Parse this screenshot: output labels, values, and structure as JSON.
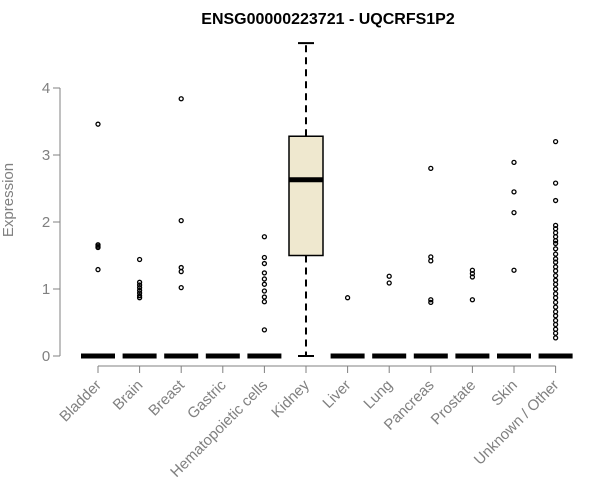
{
  "chart_data": {
    "type": "box",
    "title": "ENSG00000223721 - UQCRFS1P2",
    "ylabel": "Expression",
    "xlabel": "",
    "ylim": [
      0,
      4.7
    ],
    "yticks": [
      0,
      1,
      2,
      3,
      4
    ],
    "grid": false,
    "categories": [
      "Bladder",
      "Brain",
      "Breast",
      "Gastric",
      "Hematopoietic cells",
      "Kidney",
      "Liver",
      "Lung",
      "Pancreas",
      "Prostate",
      "Skin",
      "Unknown / Other"
    ],
    "boxes": [
      {
        "category": "Bladder",
        "q1": 0,
        "median": 0,
        "q3": 0,
        "whisker_low": 0,
        "whisker_high": 0,
        "outliers": [
          3.46,
          1.66,
          1.64,
          1.62,
          1.29
        ]
      },
      {
        "category": "Brain",
        "q1": 0,
        "median": 0,
        "q3": 0,
        "whisker_low": 0,
        "whisker_high": 0,
        "outliers": [
          1.44,
          1.1,
          1.06,
          1.02,
          0.98,
          0.94,
          0.9,
          0.87
        ]
      },
      {
        "category": "Breast",
        "q1": 0,
        "median": 0,
        "q3": 0,
        "whisker_low": 0,
        "whisker_high": 0,
        "outliers": [
          3.84,
          2.02,
          1.32,
          1.26,
          1.02
        ]
      },
      {
        "category": "Gastric",
        "q1": 0,
        "median": 0,
        "q3": 0,
        "whisker_low": 0,
        "whisker_high": 0,
        "outliers": []
      },
      {
        "category": "Hematopoietic cells",
        "q1": 0,
        "median": 0,
        "q3": 0,
        "whisker_low": 0,
        "whisker_high": 0,
        "outliers": [
          1.78,
          1.47,
          1.38,
          1.24,
          1.15,
          1.07,
          0.97,
          0.88,
          0.81,
          0.39
        ]
      },
      {
        "category": "Kidney",
        "q1": 1.5,
        "median": 2.63,
        "q3": 3.28,
        "whisker_low": 0,
        "whisker_high": 4.67,
        "outliers": []
      },
      {
        "category": "Liver",
        "q1": 0,
        "median": 0,
        "q3": 0,
        "whisker_low": 0,
        "whisker_high": 0,
        "outliers": [
          0.87
        ]
      },
      {
        "category": "Lung",
        "q1": 0,
        "median": 0,
        "q3": 0,
        "whisker_low": 0,
        "whisker_high": 0,
        "outliers": [
          1.19,
          1.09
        ]
      },
      {
        "category": "Pancreas",
        "q1": 0,
        "median": 0,
        "q3": 0,
        "whisker_low": 0,
        "whisker_high": 0,
        "outliers": [
          2.8,
          1.48,
          1.42,
          0.84,
          0.8
        ]
      },
      {
        "category": "Prostate",
        "q1": 0,
        "median": 0,
        "q3": 0,
        "whisker_low": 0,
        "whisker_high": 0,
        "outliers": [
          1.28,
          1.23,
          1.18,
          0.84
        ]
      },
      {
        "category": "Skin",
        "q1": 0,
        "median": 0,
        "q3": 0,
        "whisker_low": 0,
        "whisker_high": 0,
        "outliers": [
          2.89,
          2.45,
          2.14,
          1.28
        ]
      },
      {
        "category": "Unknown / Other",
        "q1": 0,
        "median": 0,
        "q3": 0,
        "whisker_low": 0,
        "whisker_high": 0,
        "outliers": [
          3.2,
          2.58,
          2.32,
          1.95,
          1.9,
          1.84,
          1.78,
          1.72,
          1.68,
          1.6,
          1.52,
          1.45,
          1.4,
          1.33,
          1.27,
          1.2,
          1.13,
          1.07,
          1.0,
          0.93,
          0.87,
          0.8,
          0.73,
          0.66,
          0.6,
          0.53,
          0.47,
          0.4,
          0.34,
          0.27
        ]
      }
    ],
    "colors": {
      "box_fill": "#efe8cf",
      "box_stroke": "#000000",
      "axis": "#808080",
      "text": "#808080",
      "title": "#000000"
    }
  }
}
